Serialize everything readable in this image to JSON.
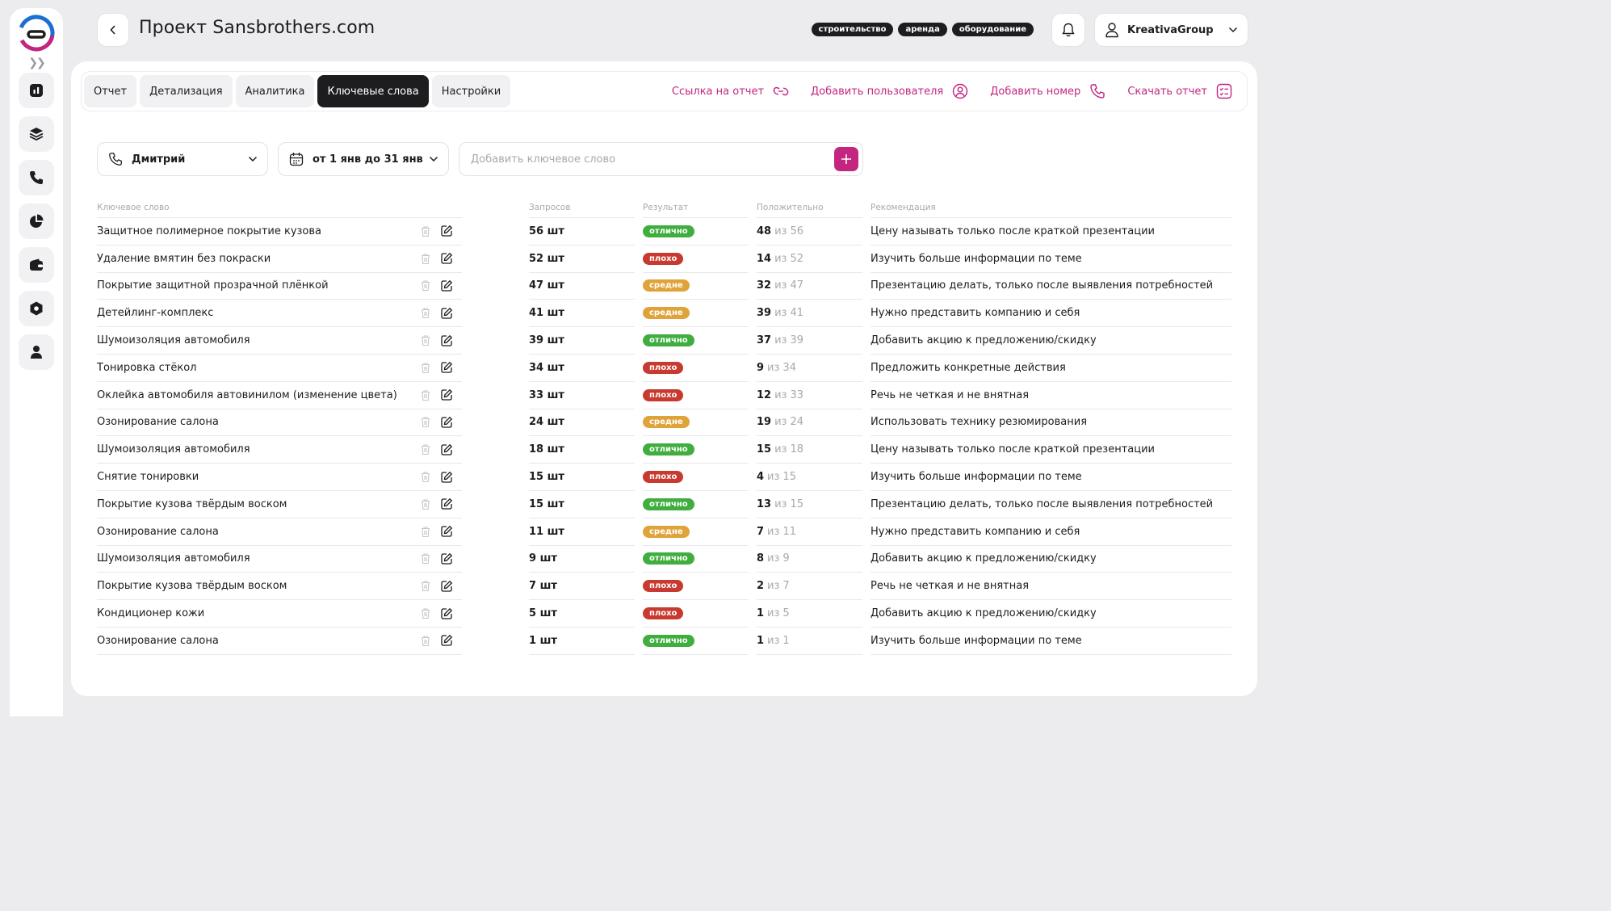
{
  "header": {
    "title": "Проект Sansbrothers.com",
    "tags": [
      "строительство",
      "аренда",
      "оборудование"
    ],
    "user": "KreativaGroup"
  },
  "tabs": [
    {
      "label": "Отчет",
      "active": false
    },
    {
      "label": "Детализация",
      "active": false
    },
    {
      "label": "Аналитика",
      "active": false
    },
    {
      "label": "Ключевые слова",
      "active": true
    },
    {
      "label": "Настройки",
      "active": false
    }
  ],
  "actions": {
    "report_link": "Ссылка на отчет",
    "add_user": "Добавить пользователя",
    "add_number": "Добавить номер",
    "download_report": "Скачать отчет"
  },
  "filters": {
    "operator": "Дмитрий",
    "period": "от 1 янв до 31 янв",
    "keyword_placeholder": "Добавить ключевое слово"
  },
  "table": {
    "headers": {
      "keyword": "Ключевое слово",
      "requests": "Запросов",
      "result": "Результат",
      "positive": "Положительно",
      "recommendation": "Рекомендация"
    },
    "of_word": "из",
    "rows": [
      {
        "keyword": "Защитное полимерное покрытие кузова",
        "requests": "56 шт",
        "result": "отлично",
        "pos": "48",
        "total": "56",
        "rec": "Цену называть только после краткой презентации"
      },
      {
        "keyword": "Удаление вмятин без покраски",
        "requests": "52 шт",
        "result": "плохо",
        "pos": "14",
        "total": "52",
        "rec": "Изучить больше информации по теме"
      },
      {
        "keyword": "Покрытие защитной прозрачной плёнкой",
        "requests": "47 шт",
        "result": "средне",
        "pos": "32",
        "total": "47",
        "rec": "Презентацию делать, только после выявления потребностей"
      },
      {
        "keyword": "Детейлинг-комплекс",
        "requests": "41 шт",
        "result": "средне",
        "pos": "39",
        "total": "41",
        "rec": "Нужно представить компанию и себя"
      },
      {
        "keyword": "Шумоизоляция автомобиля",
        "requests": "39 шт",
        "result": "отлично",
        "pos": "37",
        "total": "39",
        "rec": "Добавить акцию к предложению/скидку"
      },
      {
        "keyword": "Тонировка стёкол",
        "requests": "34 шт",
        "result": "плохо",
        "pos": "9",
        "total": "34",
        "rec": "Предложить конкретные действия"
      },
      {
        "keyword": "Оклейка автомобиля автовинилом (изменение цвета)",
        "requests": "33 шт",
        "result": "плохо",
        "pos": "12",
        "total": "33",
        "rec": "Речь не четкая и не внятная"
      },
      {
        "keyword": "Озонирование салона",
        "requests": "24 шт",
        "result": "средне",
        "pos": "19",
        "total": "24",
        "rec": "Использовать технику резюмирования"
      },
      {
        "keyword": "Шумоизоляция автомобиля",
        "requests": "18 шт",
        "result": "отлично",
        "pos": "15",
        "total": "18",
        "rec": "Цену называть только после краткой презентации"
      },
      {
        "keyword": "Снятие тонировки",
        "requests": "15 шт",
        "result": "плохо",
        "pos": "4",
        "total": "15",
        "rec": "Изучить больше информации по теме"
      },
      {
        "keyword": "Покрытие кузова твёрдым воском",
        "requests": "15 шт",
        "result": "отлично",
        "pos": "13",
        "total": "15",
        "rec": "Презентацию делать, только после выявления потребностей"
      },
      {
        "keyword": "Озонирование салона",
        "requests": "11 шт",
        "result": "средне",
        "pos": "7",
        "total": "11",
        "rec": "Нужно представить компанию и себя"
      },
      {
        "keyword": "Шумоизоляция автомобиля",
        "requests": "9 шт",
        "result": "отлично",
        "pos": "8",
        "total": "9",
        "rec": "Добавить акцию к предложению/скидку"
      },
      {
        "keyword": "Покрытие кузова твёрдым воском",
        "requests": "7 шт",
        "result": "плохо",
        "pos": "2",
        "total": "7",
        "rec": "Речь не четкая и не внятная"
      },
      {
        "keyword": "Кондиционер кожи",
        "requests": "5 шт",
        "result": "плохо",
        "pos": "1",
        "total": "5",
        "rec": "Добавить акцию к предложению/скидку"
      },
      {
        "keyword": "Озонирование салона",
        "requests": "1 шт",
        "result": "отлично",
        "pos": "1",
        "total": "1",
        "rec": "Изучить больше информации по теме"
      }
    ]
  },
  "colors": {
    "accent": "#c4257f",
    "dark": "#1d1d1f",
    "отлично": "#3fae3f",
    "плохо": "#c8392f",
    "средне": "#e0a33a"
  }
}
